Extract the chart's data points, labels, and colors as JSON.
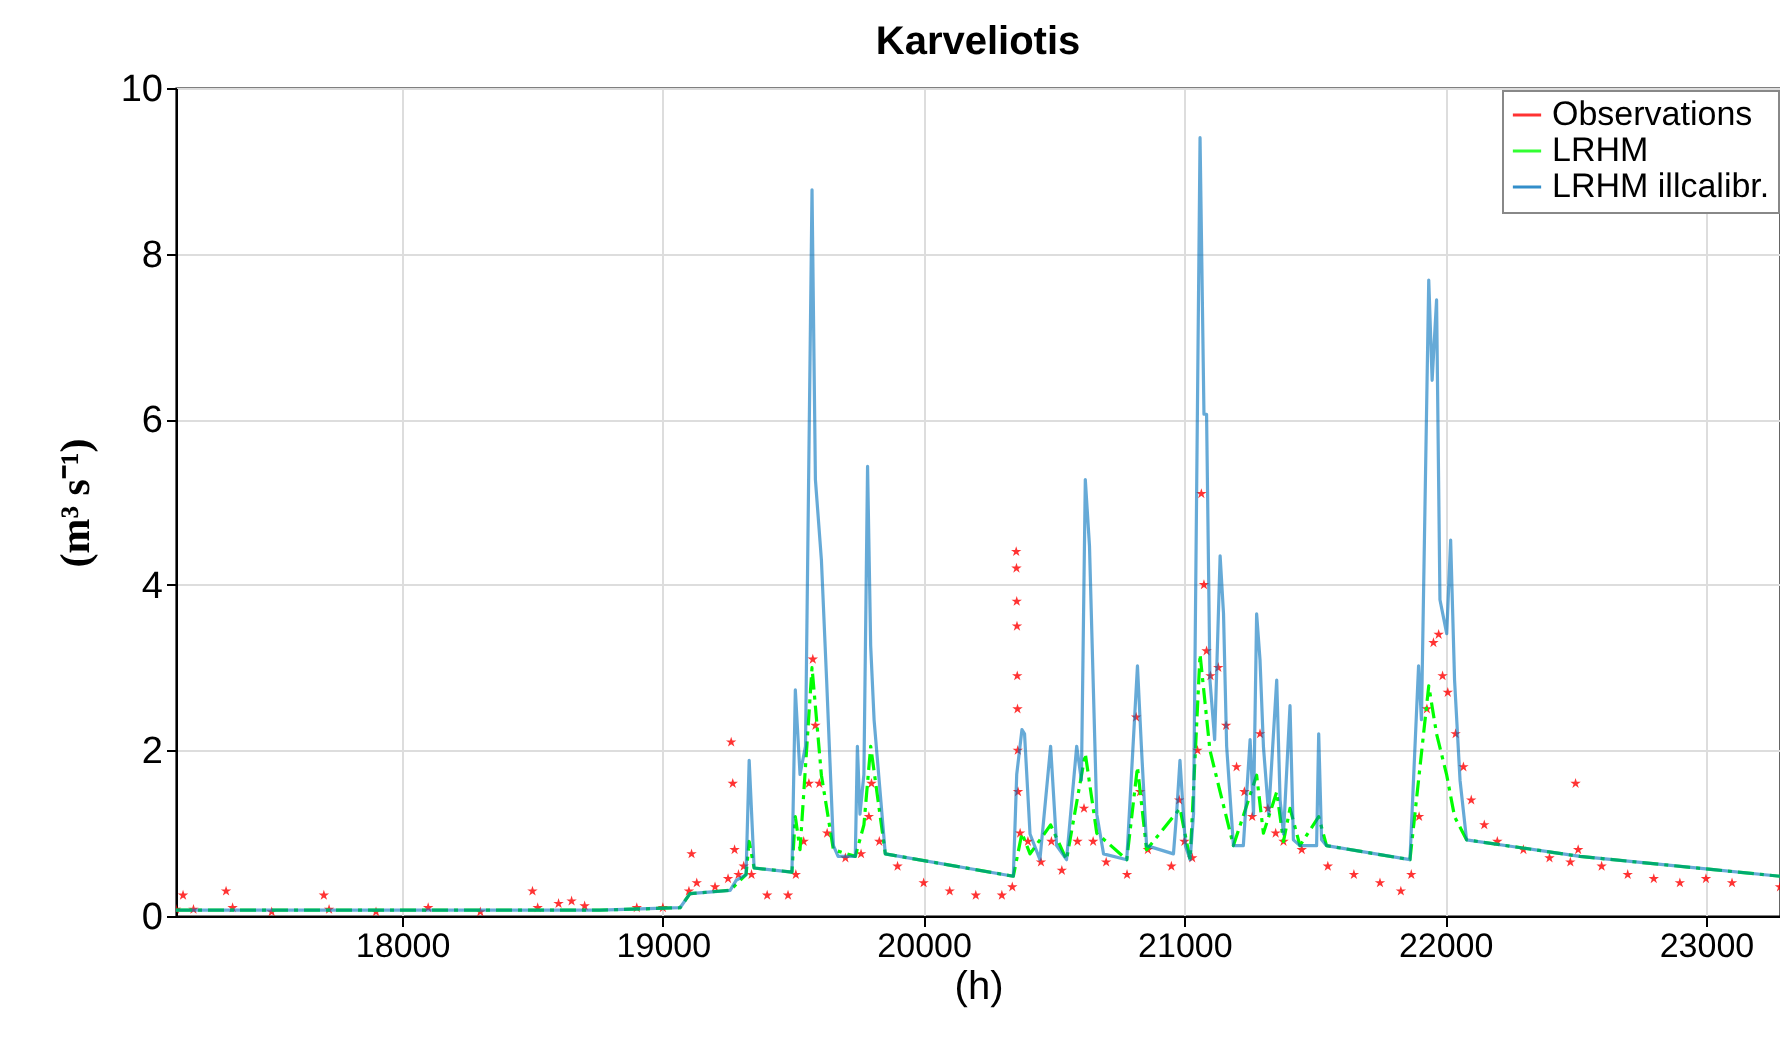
{
  "chart_data": {
    "type": "line",
    "title": "Karveliotis",
    "xlabel": "(h)",
    "ylabel": "(m³ s⁻¹)",
    "xlim": [
      17133,
      23284
    ],
    "xticks": [
      18000,
      19000,
      20000,
      21000,
      22000,
      23000
    ],
    "ylim": [
      0,
      10
    ],
    "yticks": [
      0,
      2,
      4,
      6,
      8,
      10
    ],
    "grid": true,
    "legend": "top right",
    "series": [
      {
        "name": "Observations",
        "type": "scatter",
        "marker": "star",
        "color": "#ff0000",
        "x": [
          17133,
          17160,
          17200,
          17325,
          17350,
          17500,
          17700,
          17720,
          17900,
          18100,
          18300,
          18500,
          18520,
          18600,
          18650,
          18700,
          18900,
          19000,
          19100,
          19110,
          19130,
          19200,
          19250,
          19262,
          19268,
          19275,
          19290,
          19310,
          19340,
          19400,
          19480,
          19510,
          19540,
          19560,
          19575,
          19585,
          19600,
          19630,
          19700,
          19760,
          19790,
          19800,
          19830,
          19900,
          20000,
          20100,
          20200,
          20300,
          20340,
          20355,
          20356,
          20357,
          20358,
          20359,
          20360,
          20361,
          20362,
          20370,
          20400,
          20450,
          20490,
          20530,
          20590,
          20615,
          20650,
          20700,
          20780,
          20815,
          20830,
          20860,
          20950,
          20980,
          21000,
          21030,
          21050,
          21065,
          21075,
          21085,
          21100,
          21130,
          21160,
          21200,
          21230,
          21260,
          21290,
          21320,
          21350,
          21380,
          21450,
          21550,
          21650,
          21750,
          21830,
          21870,
          21900,
          21930,
          21955,
          21975,
          21990,
          22010,
          22040,
          22070,
          22100,
          22150,
          22200,
          22300,
          22400,
          22480,
          22500,
          22510,
          22600,
          22700,
          22800,
          22900,
          23000,
          23100,
          23284
        ],
        "values": [
          0.08,
          0.25,
          0.08,
          0.3,
          0.1,
          0.05,
          0.25,
          0.08,
          0.05,
          0.1,
          0.05,
          0.3,
          0.1,
          0.15,
          0.18,
          0.12,
          0.1,
          0.1,
          0.3,
          0.75,
          0.4,
          0.35,
          0.45,
          2.1,
          1.6,
          0.8,
          0.5,
          0.6,
          0.5,
          0.25,
          0.25,
          0.5,
          0.9,
          1.6,
          3.1,
          2.3,
          1.6,
          1.0,
          0.7,
          0.75,
          1.2,
          1.6,
          0.9,
          0.6,
          0.4,
          0.3,
          0.25,
          0.25,
          0.35,
          4.4,
          4.2,
          3.8,
          3.5,
          2.9,
          2.5,
          2.0,
          1.5,
          1.0,
          0.9,
          0.65,
          0.9,
          0.55,
          0.9,
          1.3,
          0.9,
          0.65,
          0.5,
          2.4,
          1.5,
          0.8,
          0.6,
          1.4,
          0.9,
          0.7,
          2.0,
          5.1,
          4.0,
          3.2,
          2.9,
          3.0,
          2.3,
          1.8,
          1.5,
          1.2,
          2.2,
          1.3,
          1.0,
          0.9,
          0.8,
          0.6,
          0.5,
          0.4,
          0.3,
          0.5,
          1.2,
          2.5,
          3.3,
          3.4,
          2.9,
          2.7,
          2.2,
          1.8,
          1.4,
          1.1,
          0.9,
          0.8,
          0.7,
          0.65,
          1.6,
          0.8,
          0.6,
          0.5,
          0.45,
          0.4,
          0.45,
          0.4,
          0.35
        ]
      },
      {
        "name": "LRHM",
        "type": "line",
        "line_style": "dashed",
        "color": "#00ff00",
        "x": [
          17133,
          18759,
          19066,
          19104,
          19258,
          19319,
          19331,
          19350,
          19495,
          19508,
          19526,
          19572,
          19608,
          19654,
          19738,
          19771,
          19797,
          19853,
          20344,
          20377,
          20408,
          20487,
          20548,
          20620,
          20664,
          20779,
          20820,
          20855,
          20983,
          21022,
          21060,
          21098,
          21137,
          21188,
          21277,
          21303,
          21354,
          21380,
          21405,
          21443,
          21515,
          21545,
          21865,
          21937,
          21967,
          22006,
          22036,
          22082,
          22517,
          23029,
          23284
        ],
        "values": [
          0.07,
          0.07,
          0.1,
          0.27,
          0.31,
          0.5,
          0.9,
          0.58,
          0.53,
          1.2,
          0.8,
          3.0,
          1.7,
          0.8,
          0.72,
          1.1,
          2.05,
          0.75,
          0.48,
          1.0,
          0.75,
          1.1,
          0.68,
          1.96,
          1.0,
          0.68,
          1.8,
          0.8,
          1.3,
          0.68,
          3.16,
          2.0,
          1.5,
          0.85,
          1.7,
          1.0,
          1.5,
          0.9,
          1.3,
          0.85,
          1.2,
          0.85,
          0.68,
          2.78,
          2.2,
          1.7,
          1.2,
          0.92,
          0.72,
          0.56,
          0.48
        ]
      },
      {
        "name": "LRHM illcalibr.",
        "type": "line",
        "line_style": "solid",
        "color": "#0072bd",
        "x": [
          17133,
          18759,
          19066,
          19104,
          19258,
          19281,
          19319,
          19331,
          19350,
          19495,
          19508,
          19526,
          19547,
          19572,
          19585,
          19608,
          19628,
          19654,
          19672,
          19738,
          19746,
          19756,
          19771,
          19785,
          19797,
          19810,
          19853,
          20344,
          20357,
          20377,
          20387,
          20408,
          20446,
          20487,
          20510,
          20548,
          20587,
          20605,
          20620,
          20636,
          20664,
          20690,
          20779,
          20820,
          20835,
          20855,
          20958,
          20970,
          20983,
          21004,
          21022,
          21035,
          21060,
          21075,
          21085,
          21098,
          21116,
          21137,
          21150,
          21162,
          21188,
          21226,
          21252,
          21265,
          21277,
          21290,
          21303,
          21323,
          21354,
          21367,
          21380,
          21405,
          21418,
          21443,
          21507,
          21515,
          21526,
          21545,
          21865,
          21898,
          21909,
          21937,
          21950,
          21967,
          21980,
          22006,
          22021,
          22036,
          22057,
          22082,
          22517,
          23029,
          23284
        ],
        "values": [
          0.07,
          0.07,
          0.1,
          0.27,
          0.31,
          0.43,
          0.5,
          1.88,
          0.58,
          0.53,
          2.73,
          1.71,
          2.05,
          8.77,
          5.27,
          4.3,
          2.85,
          0.85,
          0.72,
          0.72,
          2.05,
          1.23,
          1.71,
          5.43,
          3.26,
          2.37,
          0.75,
          0.48,
          1.71,
          2.25,
          2.2,
          0.99,
          0.68,
          2.05,
          0.85,
          0.68,
          2.05,
          1.64,
          5.27,
          4.47,
          1.23,
          0.75,
          0.68,
          3.02,
          2.05,
          0.85,
          0.75,
          1.23,
          1.88,
          0.85,
          0.68,
          1.23,
          9.4,
          6.06,
          6.06,
          2.85,
          2.13,
          4.35,
          3.65,
          2.05,
          0.85,
          0.85,
          2.13,
          1.23,
          3.65,
          3.09,
          2.05,
          1.23,
          2.85,
          1.4,
          0.99,
          2.54,
          0.92,
          0.85,
          0.85,
          2.2,
          0.92,
          0.85,
          0.68,
          3.02,
          2.37,
          7.68,
          6.47,
          7.44,
          3.82,
          3.41,
          4.54,
          2.85,
          1.64,
          0.92,
          0.72,
          0.56,
          0.48
        ]
      }
    ]
  }
}
